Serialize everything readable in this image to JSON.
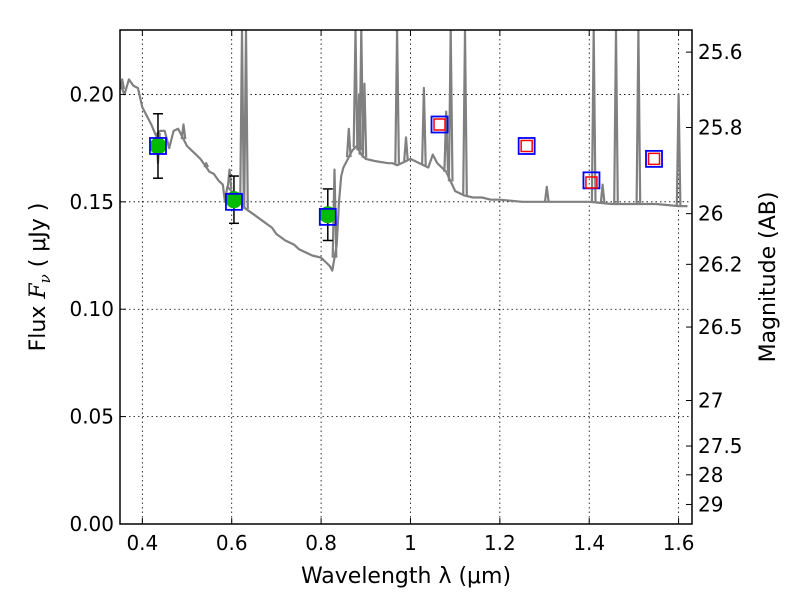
{
  "chart_data": {
    "type": "scatter",
    "xlabel": "Wavelength  λ (μm)",
    "ylabel_prefix": "Flux  ",
    "ylabel_var": "F",
    "ylabel_sub": "ν",
    "ylabel_suffix": "  ( μJy )",
    "ylabel_right": "Magnitude (AB)",
    "xlim": [
      0.35,
      1.63
    ],
    "ylim": [
      0.0,
      0.23
    ],
    "grid": true,
    "x_ticks": [
      0.4,
      0.6,
      0.8,
      1.0,
      1.2,
      1.4,
      1.6
    ],
    "x_tick_labels": [
      "0.4",
      "0.6",
      "0.8",
      "1",
      "1.2",
      "1.4",
      "1.6"
    ],
    "y_ticks": [
      0.0,
      0.05,
      0.1,
      0.15,
      0.2
    ],
    "y_tick_labels": [
      "0.00",
      "0.05",
      "0.10",
      "0.15",
      "0.20"
    ],
    "right_ticks": [
      {
        "flux": 0.2197,
        "label": "25.6"
      },
      {
        "flux": 0.1846,
        "label": "25.8"
      },
      {
        "flux": 0.1445,
        "label": "26"
      },
      {
        "flux": 0.1209,
        "label": "26.2"
      },
      {
        "flux": 0.0917,
        "label": "26.5"
      },
      {
        "flux": 0.0575,
        "label": "27"
      },
      {
        "flux": 0.0363,
        "label": "27.5"
      },
      {
        "flux": 0.0229,
        "label": "28"
      },
      {
        "flux": 0.0091,
        "label": "29"
      }
    ],
    "series": [
      {
        "type": "line",
        "color": "#808080",
        "x": [
          0.35,
          0.36,
          0.37,
          0.38,
          0.39,
          0.4,
          0.41,
          0.42,
          0.43,
          0.44,
          0.45,
          0.46,
          0.47,
          0.48,
          0.49,
          0.5,
          0.51,
          0.52,
          0.53,
          0.54,
          0.55,
          0.56,
          0.57,
          0.58,
          0.585,
          0.59,
          0.6,
          0.61,
          0.62,
          0.63,
          0.65,
          0.67,
          0.69,
          0.7,
          0.72,
          0.74,
          0.75,
          0.76,
          0.78,
          0.8,
          0.81,
          0.82,
          0.825,
          0.83,
          0.835,
          0.84,
          0.845,
          0.85,
          0.86,
          0.87,
          0.88,
          0.89,
          0.9,
          0.92,
          0.95,
          0.96,
          0.97,
          0.98,
          1.0,
          1.02,
          1.04,
          1.05,
          1.06,
          1.07,
          1.08,
          1.1,
          1.12,
          1.14,
          1.16,
          1.18,
          1.2,
          1.25,
          1.3,
          1.35,
          1.4,
          1.45,
          1.5,
          1.55,
          1.6,
          1.62
        ],
        "y": [
          0.205,
          0.2,
          0.207,
          0.204,
          0.203,
          0.194,
          0.19,
          0.186,
          0.181,
          0.183,
          0.183,
          0.175,
          0.183,
          0.184,
          0.18,
          0.176,
          0.174,
          0.172,
          0.17,
          0.167,
          0.164,
          0.163,
          0.16,
          0.158,
          0.15,
          0.157,
          0.155,
          0.153,
          0.15,
          0.147,
          0.144,
          0.141,
          0.138,
          0.135,
          0.132,
          0.13,
          0.128,
          0.127,
          0.125,
          0.124,
          0.122,
          0.12,
          0.118,
          0.124,
          0.13,
          0.15,
          0.162,
          0.166,
          0.17,
          0.174,
          0.176,
          0.172,
          0.17,
          0.169,
          0.168,
          0.168,
          0.167,
          0.168,
          0.17,
          0.168,
          0.166,
          0.172,
          0.168,
          0.166,
          0.164,
          0.155,
          0.153,
          0.152,
          0.152,
          0.151,
          0.151,
          0.15,
          0.15,
          0.15,
          0.15,
          0.149,
          0.149,
          0.149,
          0.148,
          0.148
        ],
        "spikes": [
          {
            "x": 0.355,
            "y": 0.207
          },
          {
            "x": 0.435,
            "y": 0.168
          },
          {
            "x": 0.492,
            "y": 0.186
          },
          {
            "x": 0.543,
            "y": 0.168
          },
          {
            "x": 0.595,
            "y": 0.165
          },
          {
            "x": 0.618,
            "y": 0.153
          },
          {
            "x": 0.623,
            "y": 0.23
          },
          {
            "x": 0.632,
            "y": 0.23
          },
          {
            "x": 0.83,
            "y": 0.165
          },
          {
            "x": 0.862,
            "y": 0.184
          },
          {
            "x": 0.877,
            "y": 0.23
          },
          {
            "x": 0.885,
            "y": 0.2
          },
          {
            "x": 0.89,
            "y": 0.23
          },
          {
            "x": 0.897,
            "y": 0.205
          },
          {
            "x": 0.97,
            "y": 0.23
          },
          {
            "x": 0.99,
            "y": 0.18
          },
          {
            "x": 1.03,
            "y": 0.203
          },
          {
            "x": 1.08,
            "y": 0.192
          },
          {
            "x": 1.09,
            "y": 0.23
          },
          {
            "x": 1.122,
            "y": 0.23
          },
          {
            "x": 1.305,
            "y": 0.157
          },
          {
            "x": 1.41,
            "y": 0.23
          },
          {
            "x": 1.43,
            "y": 0.158
          },
          {
            "x": 1.46,
            "y": 0.23
          },
          {
            "x": 1.51,
            "y": 0.23
          },
          {
            "x": 1.6,
            "y": 0.2
          }
        ]
      },
      {
        "type": "points",
        "marker": "circle",
        "color": "#00bb00",
        "x": [
          0.435,
          0.605,
          0.815
        ],
        "y": [
          0.176,
          0.151,
          0.144
        ],
        "yerr": [
          0.015,
          0.011,
          0.012
        ]
      },
      {
        "type": "points",
        "marker": "square-open",
        "color": "#0000ff",
        "x": [
          0.435,
          0.605,
          0.815,
          1.065,
          1.26,
          1.405,
          1.545
        ],
        "y": [
          0.176,
          0.15,
          0.143,
          0.186,
          0.176,
          0.16,
          0.17
        ]
      },
      {
        "type": "points",
        "marker": "square-open-small",
        "color": "#ff0000",
        "x": [
          1.065,
          1.26,
          1.405,
          1.545
        ],
        "y": [
          0.186,
          0.176,
          0.159,
          0.17
        ]
      }
    ]
  }
}
